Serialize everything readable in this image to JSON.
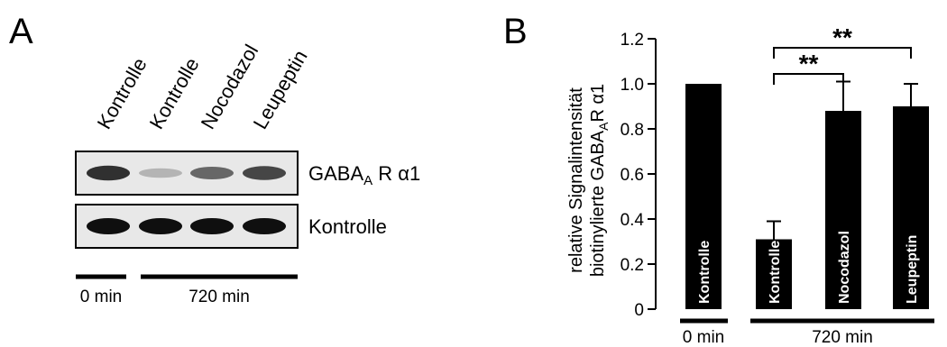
{
  "panel_a": {
    "letter": "A",
    "lanes": [
      "Kontrolle",
      "Kontrolle",
      "Nocodazol",
      "Leupeptin"
    ],
    "blots": [
      {
        "label_main": "GABA",
        "label_sub": "A",
        "label_rest": "R α1",
        "band_intensity": [
          0.85,
          0.25,
          0.6,
          0.75
        ]
      },
      {
        "label_main": "Kontrolle",
        "label_sub": "",
        "label_rest": "",
        "band_intensity": [
          1.0,
          1.0,
          1.0,
          1.0
        ]
      }
    ],
    "time_groups": [
      {
        "label": "0 min"
      },
      {
        "label": "720 min"
      }
    ]
  },
  "panel_b": {
    "letter": "B",
    "ylabel_line1": "relative Signalintensität",
    "ylabel_line2_main": "biotinylierte GABA",
    "ylabel_line2_sub": "A",
    "ylabel_line2_rest": "R α1",
    "time_groups": [
      {
        "label": "0 min"
      },
      {
        "label": "720 min"
      }
    ],
    "significance": [
      {
        "label": "**"
      },
      {
        "label": "**"
      }
    ]
  },
  "chart_data": {
    "type": "bar",
    "categories": [
      "Kontrolle",
      "Kontrolle",
      "Nocodazol",
      "Leupeptin"
    ],
    "values": [
      1.0,
      0.31,
      0.88,
      0.9
    ],
    "errors": [
      0.0,
      0.08,
      0.13,
      0.1
    ],
    "ylim": [
      0,
      1.2
    ],
    "yticks": [
      0,
      0.2,
      0.4,
      0.6,
      0.8,
      1.0,
      1.2
    ],
    "ytick_labels": [
      "0",
      "0.2",
      "0.4",
      "0.6",
      "0.8",
      "1.0",
      "1.2"
    ],
    "significance_pairs": [
      [
        1,
        2
      ],
      [
        1,
        3
      ]
    ]
  }
}
